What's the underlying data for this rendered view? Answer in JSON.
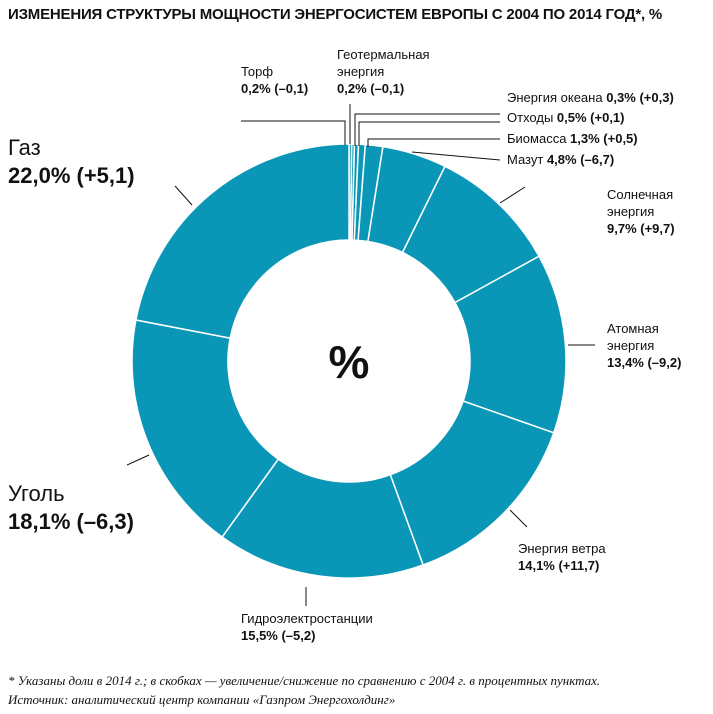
{
  "title": "ИЗМЕНЕНИЯ СТРУКТУРЫ МОЩНОСТИ ЭНЕРГОСИСТЕМ ЕВРОПЫ С 2004 ПО 2014 ГОД*, %",
  "center_label": "%",
  "colors": {
    "slice": "#0a97b7",
    "separator": "#ffffff",
    "leader": "#111111"
  },
  "chart_data": {
    "type": "pie",
    "donut": true,
    "unit": "%",
    "slices": [
      {
        "name": "Торф",
        "value": 0.2,
        "change_text": "(–0,1)",
        "value_text": "0,2%"
      },
      {
        "name": "Геотермальная энергия",
        "value": 0.2,
        "change_text": "(–0,1)",
        "value_text": "0,2%"
      },
      {
        "name": "Энергия океана",
        "value": 0.3,
        "change_text": "(+0,3)",
        "value_text": "0,3%"
      },
      {
        "name": "Отходы",
        "value": 0.5,
        "change_text": "(+0,1)",
        "value_text": "0,5%"
      },
      {
        "name": "Биомасса",
        "value": 1.3,
        "change_text": "(+0,5)",
        "value_text": "1,3%"
      },
      {
        "name": "Мазут",
        "value": 4.8,
        "change_text": "(–6,7)",
        "value_text": "4,8%"
      },
      {
        "name": "Солнечная энергия",
        "value": 9.7,
        "change_text": "(+9,7)",
        "value_text": "9,7%"
      },
      {
        "name": "Атомная энергия",
        "value": 13.4,
        "change_text": "(–9,2)",
        "value_text": "13,4%"
      },
      {
        "name": "Энергия ветра",
        "value": 14.1,
        "change_text": "(+11,7)",
        "value_text": "14,1%"
      },
      {
        "name": "Гидроэлектростанции",
        "value": 15.5,
        "change_text": "(–5,2)",
        "value_text": "15,5%"
      },
      {
        "name": "Уголь",
        "value": 18.1,
        "change_text": "(–6,3)",
        "value_text": "18,1%"
      },
      {
        "name": "Газ",
        "value": 22.0,
        "change_text": "(+5,1)",
        "value_text": "22,0%"
      }
    ]
  },
  "labels": {
    "torf": {
      "l1": "Торф",
      "v": "0,2% (–0,1)"
    },
    "geo": {
      "l1": "Геотермальная",
      "l2": "энергия",
      "v": "0,2% (–0,1)"
    },
    "ocean": {
      "name": "Энергия океана",
      "v": "0,3% (+0,3)"
    },
    "waste": {
      "name": "Отходы",
      "v": "0,5% (+0,1)"
    },
    "bio": {
      "name": "Биомасса",
      "v": "1,3% (+0,5)"
    },
    "oil": {
      "name": "Мазут",
      "v": "4,8% (–6,7)"
    },
    "solar": {
      "l1": "Солнечная",
      "l2": "энергия",
      "v": "9,7% (+9,7)"
    },
    "nuclear": {
      "l1": "Атомная",
      "l2": "энергия",
      "v": "13,4% (–9,2)"
    },
    "wind": {
      "l1": "Энергия ветра",
      "v": "14,1% (+11,7)"
    },
    "hydro": {
      "l1": "Гидроэлектростанции",
      "v": "15,5% (–5,2)"
    },
    "gas": {
      "l1": "Газ",
      "v": "22,0% (+5,1)"
    },
    "coal": {
      "l1": "Уголь",
      "v": "18,1% (–6,3)"
    }
  },
  "footer": {
    "note": "* Указаны доли в 2014 г.; в скобках — увеличение/снижение по сравнению с 2004 г. в процентных пунктах.",
    "source": "Источник: аналитический центр компании «Газпром Энергохолдинг»"
  }
}
